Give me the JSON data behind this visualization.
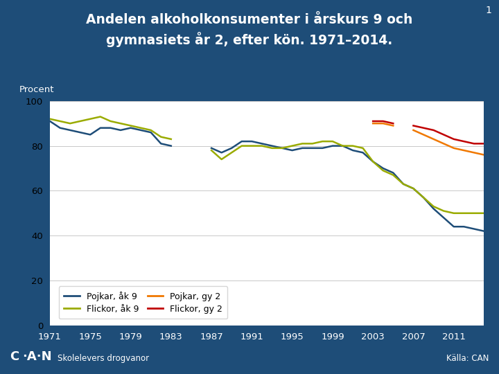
{
  "title_line1": "Andelen alkoholkonsumenter i årskurs 9 och",
  "title_line2": "gymnasiets år 2, efter kön. 1971–2014.",
  "ylabel": "Procent",
  "bg_color": "#1e4d78",
  "plot_bg_color": "#ffffff",
  "slide_number": "1",
  "pojkar_ak9_years_1": [
    1971,
    1972,
    1973,
    1974,
    1975,
    1976,
    1977,
    1978,
    1979,
    1980,
    1981,
    1982,
    1983
  ],
  "pojkar_ak9_vals_1": [
    91,
    88,
    87,
    86,
    85,
    88,
    88,
    87,
    88,
    87,
    86,
    81,
    80
  ],
  "pojkar_ak9_years_2": [
    1987,
    1988,
    1989,
    1990,
    1991,
    1992,
    1993,
    1994,
    1995,
    1996,
    1997,
    1998,
    1999,
    2000,
    2001,
    2002,
    2003,
    2004,
    2005,
    2006,
    2007,
    2008,
    2009,
    2010,
    2011,
    2012,
    2013,
    2014
  ],
  "pojkar_ak9_vals_2": [
    79,
    77,
    79,
    82,
    82,
    81,
    80,
    79,
    78,
    79,
    79,
    79,
    80,
    80,
    78,
    77,
    73,
    70,
    68,
    63,
    61,
    57,
    52,
    48,
    44,
    44,
    43,
    42
  ],
  "flickor_ak9_years_1": [
    1971,
    1972,
    1973,
    1974,
    1975,
    1976,
    1977,
    1978,
    1979,
    1980,
    1981,
    1982,
    1983
  ],
  "flickor_ak9_vals_1": [
    92,
    91,
    90,
    91,
    92,
    93,
    91,
    90,
    89,
    88,
    87,
    84,
    83
  ],
  "flickor_ak9_years_2": [
    1987,
    1988,
    1989,
    1990,
    1991,
    1992,
    1993,
    1994,
    1995,
    1996,
    1997,
    1998,
    1999,
    2000,
    2001,
    2002,
    2003,
    2004,
    2005,
    2006,
    2007,
    2008,
    2009,
    2010,
    2011,
    2012,
    2013,
    2014
  ],
  "flickor_ak9_vals_2": [
    78,
    74,
    77,
    80,
    80,
    80,
    79,
    79,
    80,
    81,
    81,
    82,
    82,
    80,
    80,
    79,
    73,
    69,
    67,
    63,
    61,
    57,
    53,
    51,
    50,
    50,
    50,
    50
  ],
  "pojkar_gy2_years_seg1": [
    2003,
    2004,
    2005
  ],
  "pojkar_gy2_vals_seg1": [
    90,
    90,
    89
  ],
  "pojkar_gy2_years_seg2": [
    2007,
    2008,
    2009,
    2010,
    2011,
    2012,
    2013,
    2014
  ],
  "pojkar_gy2_vals_seg2": [
    87,
    85,
    83,
    81,
    79,
    78,
    77,
    76
  ],
  "flickor_gy2_years_seg1": [
    2003,
    2004,
    2005
  ],
  "flickor_gy2_vals_seg1": [
    91,
    91,
    90
  ],
  "flickor_gy2_years_seg2": [
    2007,
    2008,
    2009,
    2010,
    2011,
    2012,
    2013,
    2014
  ],
  "flickor_gy2_vals_seg2": [
    89,
    88,
    87,
    85,
    83,
    82,
    81,
    81
  ],
  "color_pojkar_ak9": "#1e4d78",
  "color_flickor_ak9": "#9aab00",
  "color_pojkar_gy2": "#f07800",
  "color_flickor_gy2": "#c00000",
  "xlim": [
    1971,
    2014
  ],
  "ylim": [
    0,
    100
  ],
  "yticks": [
    0,
    20,
    40,
    60,
    80,
    100
  ],
  "xticks": [
    1971,
    1975,
    1979,
    1983,
    1987,
    1991,
    1995,
    1999,
    2003,
    2007,
    2011
  ],
  "footer_left": "Skolelevers drogvanor",
  "footer_right": "Källa: CAN",
  "can_logo": "C·A·N"
}
